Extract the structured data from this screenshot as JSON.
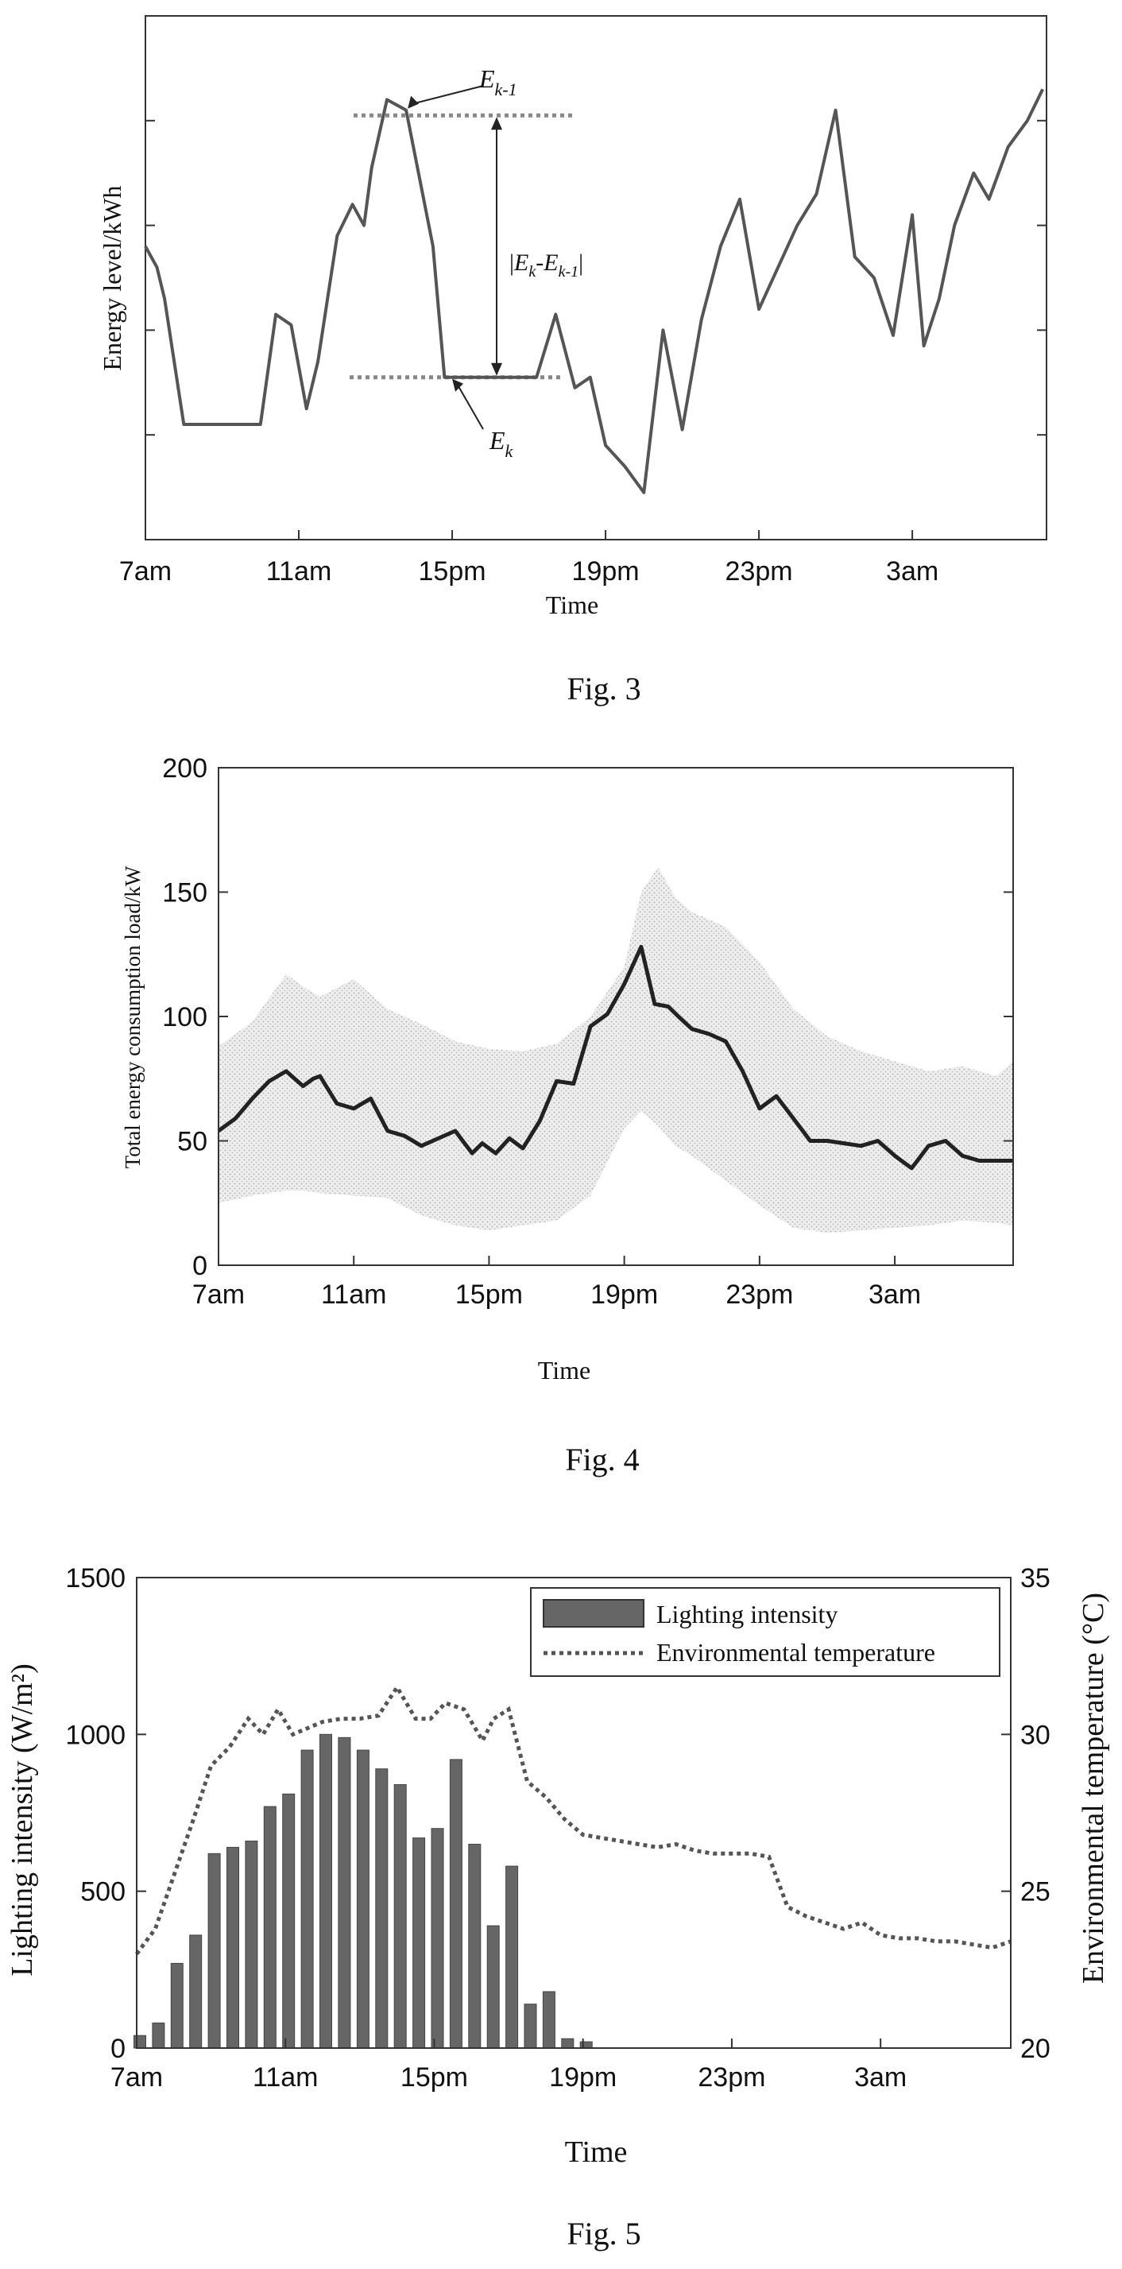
{
  "figures": {
    "fig3": {
      "caption": "Fig. 3"
    },
    "fig4": {
      "caption": "Fig. 4"
    },
    "fig5": {
      "caption": "Fig. 5"
    }
  },
  "chart_data": [
    {
      "id": "fig3",
      "type": "line",
      "xlabel": "Time",
      "ylabel": "Energy level/kWh",
      "x_ticks": [
        "7am",
        "11am",
        "15pm",
        "19pm",
        "23pm",
        "3am"
      ],
      "x_tick_hours": [
        0,
        4,
        8,
        12,
        16,
        20
      ],
      "xlim": [
        0,
        23.5
      ],
      "ylim": [
        0,
        5
      ],
      "y_tick_values": [
        1,
        2,
        3,
        4
      ],
      "y_tick_labels_shown": false,
      "grid": false,
      "series": [
        {
          "x": [
            0,
            0.3,
            0.5,
            1,
            1.5,
            2,
            2.5,
            2.8,
            3,
            3.4,
            3.8,
            4.2,
            4.5,
            5,
            5.4,
            5.7,
            5.9,
            6.3,
            6.8,
            7.5,
            7.8,
            8.2,
            8.8,
            9.3,
            9.6,
            10.2,
            10.7,
            11.2,
            11.6,
            12,
            12.5,
            13,
            13.5,
            14,
            14.5,
            15,
            15.5,
            16,
            16.5,
            17,
            17.5,
            18,
            18.5,
            19,
            19.5,
            20,
            20.3,
            20.7,
            21.1,
            21.6,
            22,
            22.5,
            23,
            23.4
          ],
          "y": [
            2.8,
            2.6,
            2.3,
            1.1,
            1.1,
            1.1,
            1.1,
            1.1,
            1.1,
            2.15,
            2.05,
            1.25,
            1.7,
            2.9,
            3.2,
            3.0,
            3.55,
            4.2,
            4.1,
            2.8,
            1.55,
            1.55,
            1.55,
            1.55,
            1.55,
            1.55,
            2.15,
            1.45,
            1.55,
            0.9,
            0.7,
            0.45,
            2.0,
            1.05,
            2.1,
            2.8,
            3.25,
            2.2,
            2.6,
            3.0,
            3.3,
            4.1,
            2.7,
            2.5,
            1.95,
            3.1,
            1.85,
            2.3,
            3.0,
            3.5,
            3.25,
            3.75,
            4.0,
            4.3
          ]
        }
      ],
      "annotations": {
        "upper_label": "E",
        "upper_sub": "k-1",
        "lower_label": "E",
        "lower_sub": "k",
        "delta_bar": "|",
        "delta_e1": "E",
        "delta_sub1": "k",
        "delta_minus": "-E",
        "delta_sub2": "k-1",
        "upper_level": 4.05,
        "lower_level": 1.55
      }
    },
    {
      "id": "fig4",
      "type": "area",
      "xlabel": "Time",
      "ylabel": "Total energy consumption load/kW",
      "x_ticks": [
        "7am",
        "11am",
        "15pm",
        "19pm",
        "23pm",
        "3am"
      ],
      "x_tick_hours": [
        0,
        4,
        8,
        12,
        16,
        20
      ],
      "xlim": [
        0,
        23.5
      ],
      "ylim": [
        0,
        200
      ],
      "y_ticks": [
        "0",
        "50",
        "100",
        "150",
        "200"
      ],
      "y_tick_values": [
        0,
        50,
        100,
        150,
        200
      ],
      "grid": false,
      "band": {
        "x": [
          0,
          1,
          2,
          2.5,
          3,
          4,
          5,
          6,
          7,
          8,
          9,
          10,
          11,
          12,
          12.5,
          13,
          13.5,
          14,
          15,
          16,
          17,
          18,
          19,
          20,
          21,
          22,
          23,
          23.5
        ],
        "upper": [
          88,
          98,
          117,
          112,
          108,
          115,
          103,
          97,
          90,
          87,
          86,
          89,
          100,
          120,
          150,
          160,
          148,
          142,
          136,
          122,
          103,
          92,
          86,
          82,
          78,
          80,
          76,
          82
        ],
        "lower": [
          25,
          28,
          30,
          30,
          29,
          28,
          27,
          20,
          16,
          14,
          16,
          18,
          28,
          55,
          62,
          56,
          48,
          44,
          34,
          24,
          15,
          13,
          14,
          15,
          16,
          18,
          17,
          16
        ]
      },
      "series": [
        {
          "x": [
            0,
            0.5,
            1,
            1.5,
            2,
            2.5,
            2.8,
            3,
            3.5,
            4,
            4.5,
            5,
            5.5,
            6,
            6.5,
            7,
            7.5,
            7.8,
            8.2,
            8.6,
            9,
            9.5,
            10,
            10.5,
            11,
            11.5,
            12,
            12.5,
            12.9,
            13.3,
            13.6,
            14,
            14.5,
            15,
            15.5,
            16,
            16.5,
            17,
            17.5,
            18,
            18.5,
            19,
            19.5,
            20,
            20.5,
            21,
            21.5,
            22,
            22.5,
            23,
            23.5
          ],
          "y": [
            54,
            59,
            67,
            74,
            78,
            72,
            75,
            76,
            65,
            63,
            67,
            54,
            52,
            48,
            51,
            54,
            45,
            49,
            45,
            51,
            47,
            58,
            74,
            73,
            96,
            101,
            113,
            128,
            105,
            104,
            100,
            95,
            93,
            90,
            78,
            63,
            68,
            59,
            50,
            50,
            49,
            48,
            50,
            44,
            39,
            48,
            50,
            44,
            42,
            42,
            42
          ]
        }
      ]
    },
    {
      "id": "fig5",
      "type": "bar",
      "xlabel": "Time",
      "ylabel_left": "Lighting intensity (W/m²)",
      "ylabel_right": "Environmental temperature (°C)",
      "x_ticks": [
        "7am",
        "11am",
        "15pm",
        "19pm",
        "23pm",
        "3am"
      ],
      "x_tick_hours": [
        0,
        4,
        8,
        12,
        16,
        20
      ],
      "xlim": [
        0,
        23.5
      ],
      "ylim_left": [
        0,
        1500
      ],
      "ylim_right": [
        20,
        35
      ],
      "y_ticks_left": [
        "0",
        "500",
        "1000",
        "1500"
      ],
      "y_tick_values_left": [
        0,
        500,
        1000,
        1500
      ],
      "y_ticks_right": [
        "20",
        "25",
        "30",
        "35"
      ],
      "y_tick_values_right": [
        20,
        25,
        30,
        35
      ],
      "grid": false,
      "legend_position": "top-right",
      "bars": {
        "name": "Lighting intensity",
        "x": [
          0,
          0.5,
          1,
          1.5,
          2,
          2.5,
          3,
          3.5,
          4,
          4.5,
          5,
          5.5,
          6,
          6.5,
          7,
          7.5,
          8,
          8.5,
          9,
          9.5,
          10,
          10.5,
          11,
          11.5,
          12,
          12.5
        ],
        "values": [
          40,
          80,
          270,
          360,
          620,
          640,
          660,
          770,
          810,
          950,
          1000,
          990,
          950,
          890,
          840,
          670,
          700,
          920,
          650,
          390,
          580,
          140,
          180,
          30,
          20,
          0
        ]
      },
      "line": {
        "name": "Environmental temperature",
        "x": [
          0,
          0.5,
          1,
          1.5,
          2,
          2.5,
          3,
          3.4,
          3.8,
          4.2,
          4.6,
          5,
          5.5,
          6,
          6.5,
          7,
          7.5,
          7.9,
          8.3,
          8.8,
          9.3,
          9.6,
          10,
          10.5,
          11,
          11.5,
          12,
          12.5,
          13,
          13.5,
          14,
          14.5,
          15,
          15.5,
          16,
          16.5,
          17,
          17.5,
          18,
          18.5,
          19,
          19.5,
          20,
          20.5,
          21,
          21.5,
          22,
          22.5,
          23,
          23.5
        ],
        "values": [
          23.0,
          23.8,
          25.5,
          27.2,
          29.0,
          29.6,
          30.5,
          30.0,
          30.8,
          30.0,
          30.2,
          30.4,
          30.5,
          30.5,
          30.6,
          31.5,
          30.5,
          30.5,
          31.0,
          30.8,
          29.8,
          30.5,
          30.8,
          28.5,
          28.0,
          27.3,
          26.8,
          26.7,
          26.6,
          26.5,
          26.4,
          26.5,
          26.3,
          26.2,
          26.2,
          26.2,
          26.1,
          24.5,
          24.2,
          24.0,
          23.8,
          24.0,
          23.6,
          23.5,
          23.5,
          23.4,
          23.4,
          23.3,
          23.2,
          23.4
        ]
      }
    }
  ]
}
